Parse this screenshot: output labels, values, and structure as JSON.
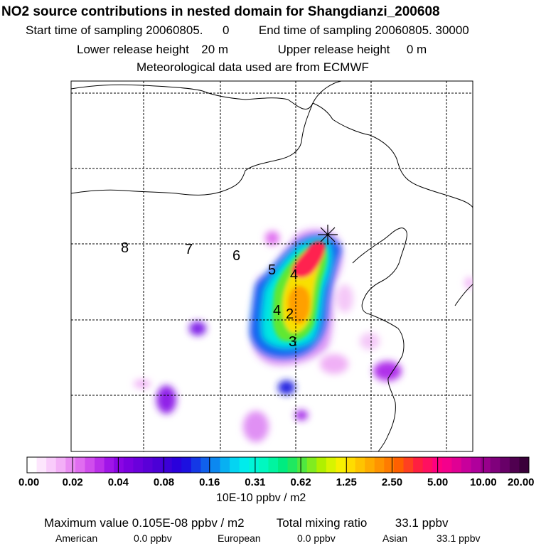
{
  "header": {
    "title": "NO2 source contributions in nested domain for Shangdianzi_200608",
    "start_label": "Start time of sampling",
    "start_value": "20060805.",
    "start_hour": "0",
    "end_label": "End time of sampling",
    "end_value": "20060805. 30000",
    "lower_label": "Lower release height",
    "lower_value": "20 m",
    "upper_label": "Upper release height",
    "upper_value": "0 m",
    "met_note": "Meteorological data used are from ECMWF"
  },
  "map": {
    "contour_labels": [
      "8",
      "7",
      "6",
      "5",
      "4",
      "4",
      "2",
      "3"
    ],
    "station_marker": "asterisk-icon"
  },
  "colorbar": {
    "tick_labels": [
      "0.00",
      "0.02",
      "0.04",
      "0.08",
      "0.16",
      "0.31",
      "0.62",
      "1.25",
      "2.50",
      "5.00",
      "10.00",
      "20.00"
    ],
    "colors": [
      "#ffffff",
      "#fde6fd",
      "#f9ccfb",
      "#f3b0f7",
      "#ea8ef3",
      "#e06df0",
      "#d04ded",
      "#bb2fea",
      "#a015e8",
      "#8a05e4",
      "#7a00e0",
      "#6a00dc",
      "#5a00d8",
      "#4b00d6",
      "#3c00d8",
      "#2a00dc",
      "#1c10e0",
      "#1438e6",
      "#1060ec",
      "#0c88f0",
      "#08b0f2",
      "#04d4f2",
      "#00ecec",
      "#00f4d8",
      "#00f8c0",
      "#00f4a0",
      "#00ec80",
      "#20e860",
      "#50e840",
      "#80ec20",
      "#b0f000",
      "#d8f400",
      "#f8f000",
      "#ffdc00",
      "#ffc400",
      "#ffac00",
      "#ff9400",
      "#ff7c00",
      "#ff6000",
      "#ff4020",
      "#ff2040",
      "#ff1060",
      "#ff0080",
      "#f4008c",
      "#e00094",
      "#c8009c",
      "#b0009c",
      "#98008c",
      "#80007c",
      "#680068",
      "#500050",
      "#3a003a"
    ],
    "unit": "10E-10 ppbv / m2"
  },
  "summary": {
    "max_label": "Maximum value",
    "max_value": "0.105E-08 ppbv / m2",
    "total_label": "Total mixing ratio",
    "total_value": "33.1 ppbv",
    "american_label": "American",
    "american_value": "0.0 ppbv",
    "european_label": "European",
    "european_value": "0.0 ppbv",
    "asian_label": "Asian",
    "asian_value": "33.1 ppbv"
  }
}
